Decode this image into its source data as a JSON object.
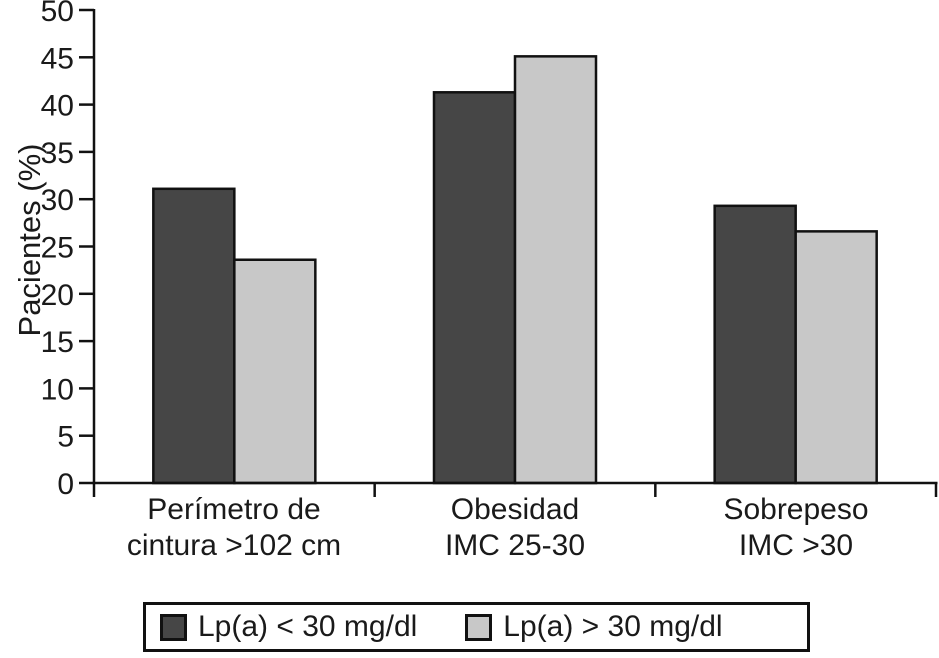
{
  "chart_data": {
    "type": "bar",
    "title": "",
    "ylabel": "Pacientes (%)",
    "xlabel": "",
    "ylim": [
      0,
      50
    ],
    "ytick_step": 5,
    "yticks": [
      0,
      5,
      10,
      15,
      20,
      25,
      30,
      35,
      40,
      45,
      50
    ],
    "grid": false,
    "legend_position": "bottom-box",
    "axis_color": "#111111",
    "bar_border_color": "#111111",
    "categories": [
      {
        "line1": "Perímetro de",
        "line2": "cintura >102 cm"
      },
      {
        "line1": "Obesidad",
        "line2": "IMC 25-30"
      },
      {
        "line1": "Sobrepeso",
        "line2": "IMC >30"
      }
    ],
    "series": [
      {
        "name": "Lp(a) < 30 mg/dl",
        "color": "#464646",
        "values": [
          31.1,
          41.3,
          29.3
        ]
      },
      {
        "name": "Lp(a) > 30 mg/dl",
        "color": "#c8c8c8",
        "values": [
          23.6,
          45.1,
          26.6
        ]
      }
    ]
  }
}
